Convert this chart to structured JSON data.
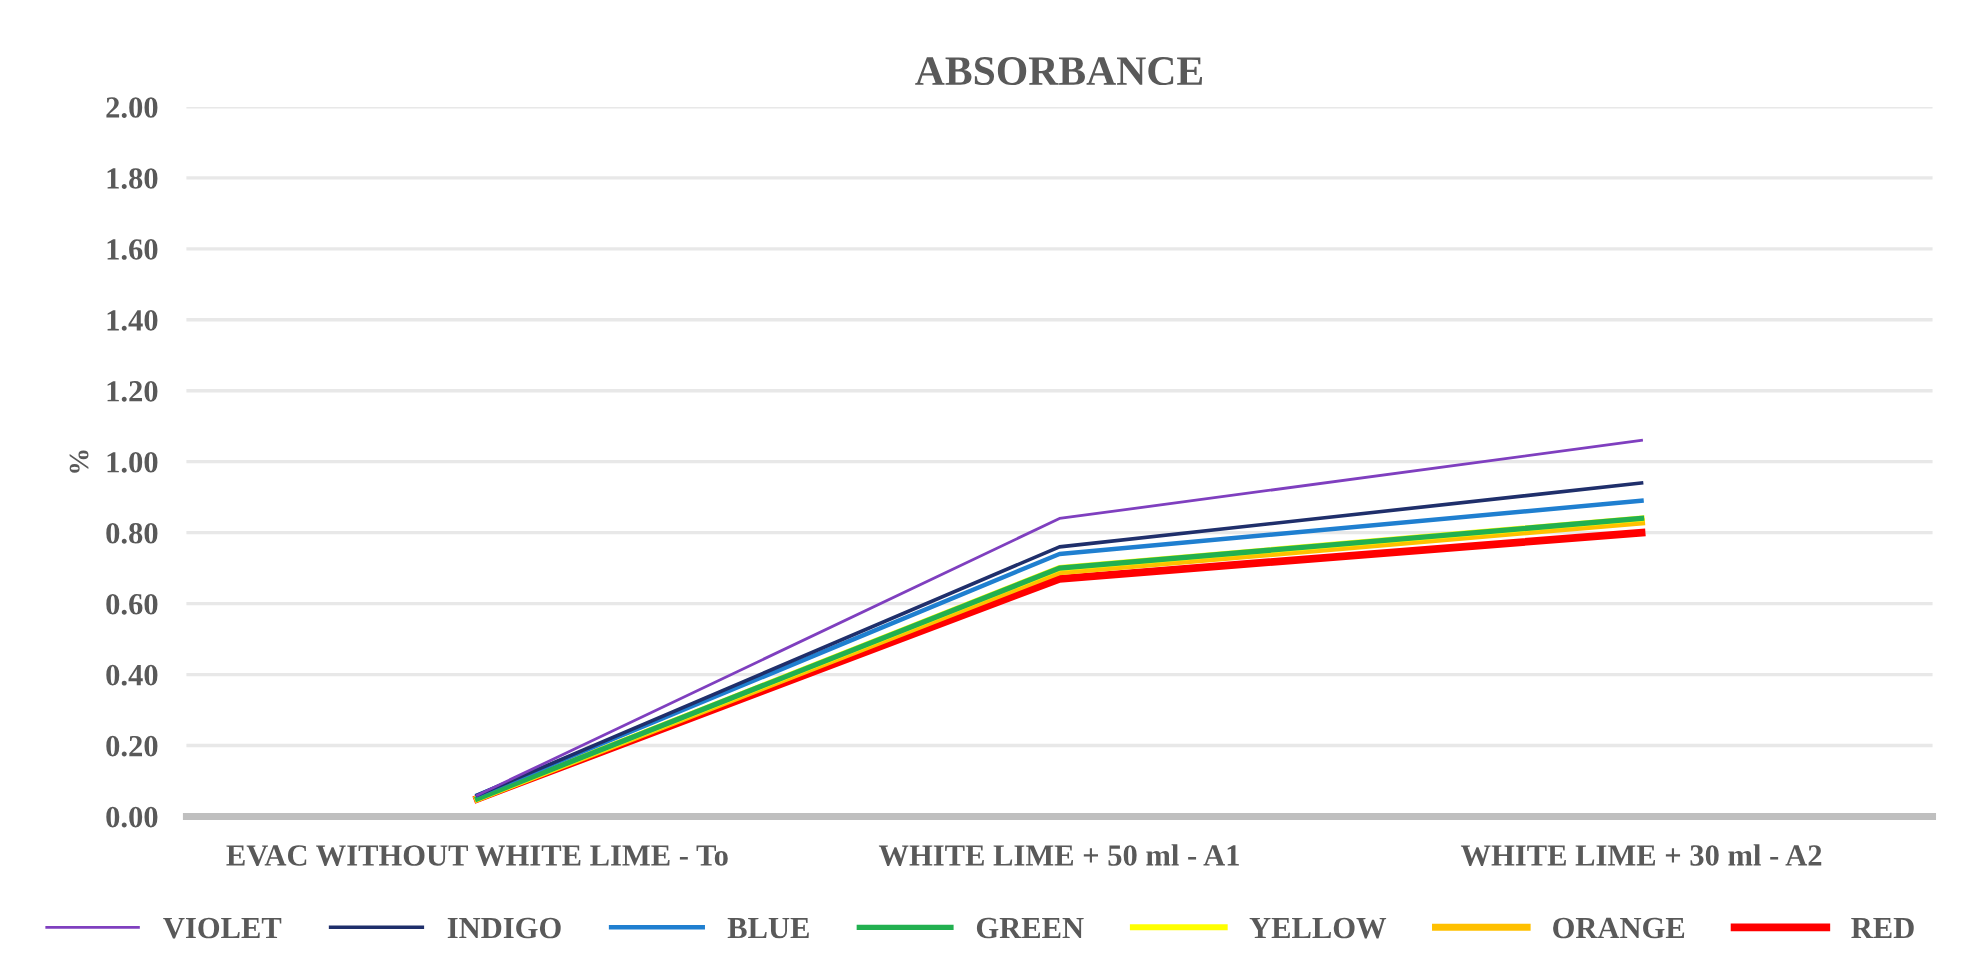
{
  "chart_data": {
    "type": "line",
    "title": "ABSORBANCE",
    "ylabel": "%",
    "categories": [
      "EVAC WITHOUT WHITE LIME - To",
      "WHITE LIME + 50 ml - A1",
      "WHITE LIME + 30 ml - A2"
    ],
    "ylim": [
      0,
      2
    ],
    "yticks": [
      {
        "value": 0,
        "label": "0.00"
      },
      {
        "value": 0.2,
        "label": "0.20"
      },
      {
        "value": 0.4,
        "label": "0.40"
      },
      {
        "value": 0.6,
        "label": "0.60"
      },
      {
        "value": 0.8,
        "label": "0.80"
      },
      {
        "value": 1,
        "label": "1.00"
      },
      {
        "value": 1.2,
        "label": "1.20"
      },
      {
        "value": 1.4,
        "label": "1.40"
      },
      {
        "value": 1.6,
        "label": "1.60"
      },
      {
        "value": 1.8,
        "label": "1.80"
      },
      {
        "value": 2,
        "label": "2.00"
      }
    ],
    "grid": "y",
    "legend": "bottom",
    "marker": "none",
    "line_style": "solid",
    "series": [
      {
        "name": "VIOLET",
        "color": "#7f3fbf",
        "values": [
          0.06,
          0.84,
          1.06
        ]
      },
      {
        "name": "INDIGO",
        "color": "#1f2f6b",
        "values": [
          0.06,
          0.76,
          0.94
        ]
      },
      {
        "name": "BLUE",
        "color": "#1f7fd0",
        "values": [
          0.06,
          0.74,
          0.89
        ]
      },
      {
        "name": "GREEN",
        "color": "#22b050",
        "values": [
          0.05,
          0.7,
          0.84
        ]
      },
      {
        "name": "YELLOW",
        "color": "#ffff00",
        "values": [
          0.05,
          0.7,
          0.84
        ]
      },
      {
        "name": "ORANGE",
        "color": "#ffc000",
        "values": [
          0.05,
          0.69,
          0.83
        ]
      },
      {
        "name": "RED",
        "color": "#ff0000",
        "values": [
          0.05,
          0.67,
          0.8
        ]
      }
    ]
  }
}
